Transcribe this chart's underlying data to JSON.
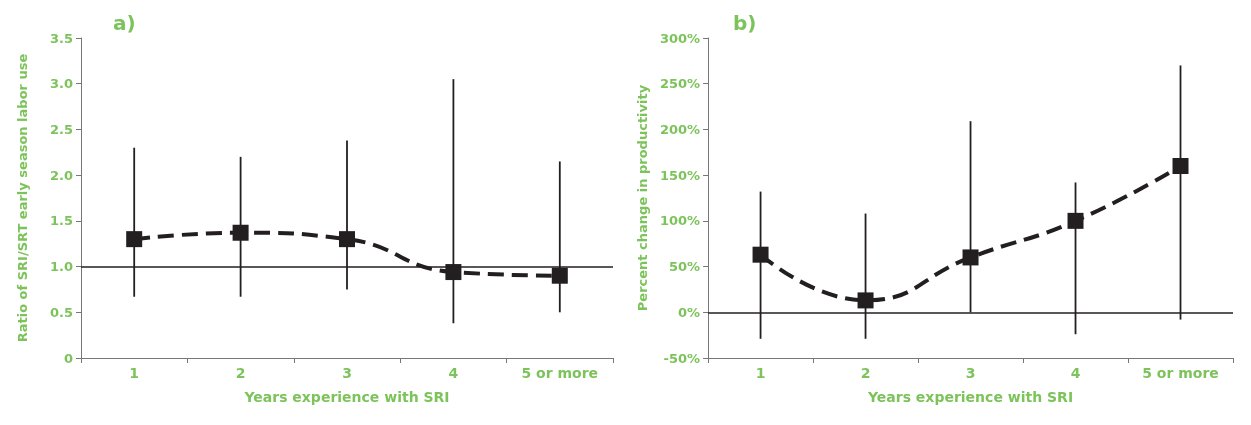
{
  "chart_data": [
    {
      "type": "line",
      "title": "a)",
      "xlabel": "Years experience with SRI",
      "ylabel": "Ratio of SRI/SRT early season labor use",
      "categories": [
        "1",
        "2",
        "3",
        "4",
        "5 or more"
      ],
      "series": [
        {
          "color": "#231f20",
          "values": [
            1.3,
            1.37,
            1.3,
            0.94,
            0.9
          ],
          "errors": [
            [
              0.67,
              2.3
            ],
            [
              0.67,
              2.2
            ],
            [
              0.75,
              2.38
            ],
            [
              0.38,
              3.05
            ],
            [
              0.5,
              2.15
            ]
          ]
        }
      ],
      "ylim": [
        0,
        3.5
      ],
      "yticks": [
        0,
        0.5,
        {
          "value": 1,
          "label": "1.0"
        },
        1.5,
        {
          "value": 2,
          "label": "2.0"
        },
        2.5,
        {
          "value": 3,
          "label": "3.0"
        },
        3.5
      ],
      "ref_lines": [
        {
          "axis": "y",
          "value": 1,
          "color": "#231f20"
        }
      ],
      "marker": "square",
      "line_style": "dashed",
      "grid": false
    },
    {
      "type": "line",
      "title": "b)",
      "xlabel": "Years experience with SRI",
      "ylabel": "Percent change in productivity",
      "categories": [
        "1",
        "2",
        "3",
        "4",
        "5 or more"
      ],
      "series": [
        {
          "color": "#231f20",
          "values": [
            63,
            13,
            60,
            100,
            160
          ],
          "errors": [
            [
              -29,
              132
            ],
            [
              -29,
              108
            ],
            [
              0,
              209
            ],
            [
              -24,
              142
            ],
            [
              -8,
              270
            ]
          ]
        }
      ],
      "ylim": [
        -50,
        300
      ],
      "yticks": [
        {
          "value": -50,
          "label": "-50%"
        },
        {
          "value": 0,
          "label": "0%"
        },
        {
          "value": 50,
          "label": "50%"
        },
        {
          "value": 100,
          "label": "100%"
        },
        {
          "value": 150,
          "label": "150%"
        },
        {
          "value": 200,
          "label": "200%"
        },
        {
          "value": 250,
          "label": "250%"
        },
        {
          "value": 300,
          "label": "300%"
        }
      ],
      "ref_lines": [
        {
          "axis": "y",
          "value": 0,
          "color": "#231f20"
        }
      ],
      "marker": "square",
      "line_style": "dashed",
      "grid": false
    }
  ]
}
